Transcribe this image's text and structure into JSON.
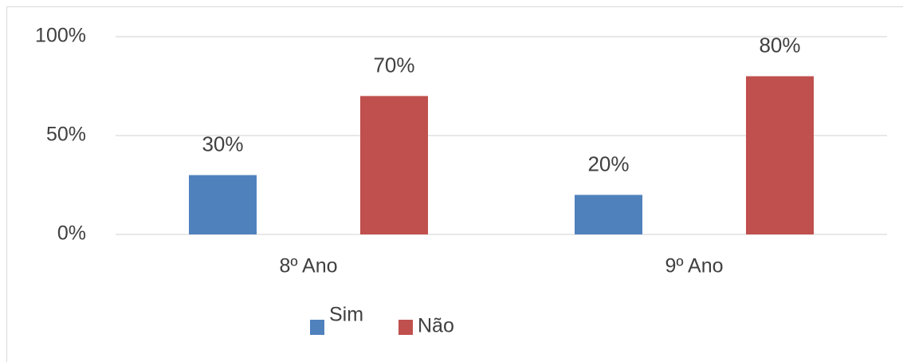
{
  "chart_data": {
    "type": "bar",
    "categories": [
      "8º Ano",
      "9º Ano"
    ],
    "series": [
      {
        "name": "Sim",
        "color": "#4f81bd",
        "values": [
          30,
          20
        ],
        "value_labels": [
          "30%",
          "20%"
        ]
      },
      {
        "name": "Não",
        "color": "#c0504d",
        "values": [
          70,
          80
        ],
        "value_labels": [
          "70%",
          "80%"
        ]
      }
    ],
    "ylim": [
      0,
      100
    ],
    "yticks": [
      {
        "value": 0,
        "label": "0%"
      },
      {
        "value": 50,
        "label": "50%"
      },
      {
        "value": 100,
        "label": "100%"
      }
    ],
    "grid": true,
    "legend": "bottom"
  }
}
